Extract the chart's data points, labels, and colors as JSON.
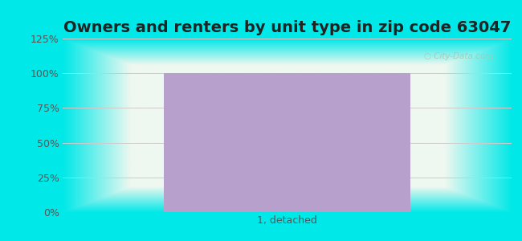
{
  "title": "Owners and renters by unit type in zip code 63047",
  "categories": [
    "1, detached"
  ],
  "values": [
    100
  ],
  "bar_color": "#b8a0cc",
  "bar_width": 0.55,
  "ylim": [
    0,
    125
  ],
  "yticks": [
    0,
    25,
    50,
    75,
    100,
    125
  ],
  "ytick_labels": [
    "0%",
    "25%",
    "50%",
    "75%",
    "100%",
    "125%"
  ],
  "title_fontsize": 14,
  "tick_fontsize": 9,
  "bg_outer_color": "#00e8e8",
  "bg_center_color": "#eef8f0",
  "watermark_text": "City-Data.com",
  "watermark_color": "#b0c4b0",
  "title_color": "#222222",
  "grid_color": "#cccccc",
  "tick_color": "#555555"
}
